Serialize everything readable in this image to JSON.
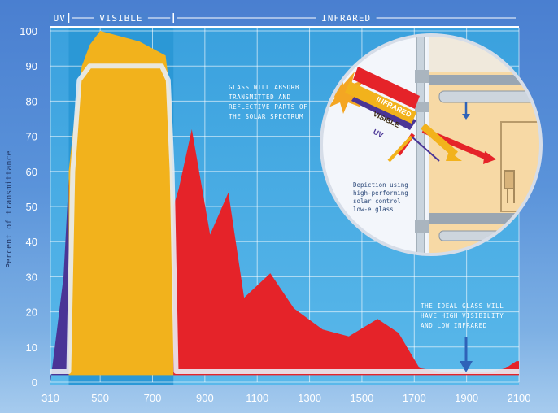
{
  "chart_data": {
    "type": "area",
    "xlabel": "",
    "ylabel": "Percent of transmittance",
    "xlim": [
      310,
      2100
    ],
    "ylim": [
      0,
      100
    ],
    "x_ticks": [
      310,
      500,
      700,
      900,
      1100,
      1300,
      1500,
      1700,
      1900,
      2100
    ],
    "y_ticks": [
      0,
      10,
      20,
      30,
      40,
      50,
      60,
      70,
      80,
      90,
      100
    ],
    "grid": true,
    "bands": [
      {
        "label": "UV",
        "from": 310,
        "to": 380
      },
      {
        "label": "VISIBLE",
        "from": 380,
        "to": 780
      },
      {
        "label": "INFRARED",
        "from": 780,
        "to": 2100
      }
    ],
    "series": [
      {
        "band": "UV",
        "color": "#4a3596",
        "x": [
          310,
          360,
          380,
          380,
          310
        ],
        "y": [
          0,
          30,
          58,
          2,
          2
        ]
      },
      {
        "band": "VISIBLE",
        "color": "#f2b21c",
        "x": [
          380,
          400,
          430,
          460,
          500,
          600,
          650,
          700,
          750,
          770,
          780,
          780,
          380
        ],
        "y": [
          60,
          74,
          90,
          96,
          100,
          98,
          97,
          95,
          93,
          80,
          50,
          2,
          2
        ]
      },
      {
        "band": "INFRARED",
        "color": "#e52329",
        "x": [
          780,
          800,
          850,
          920,
          990,
          1050,
          1150,
          1240,
          1350,
          1450,
          1560,
          1640,
          1720,
          1800,
          1900,
          2000,
          2050,
          2090,
          2100,
          2100,
          780
        ],
        "y": [
          50,
          55,
          72,
          42,
          54,
          24,
          31,
          21,
          15,
          13,
          18,
          14,
          4,
          3,
          3,
          3,
          4,
          6,
          6,
          2,
          2
        ]
      }
    ],
    "ideal_curve": {
      "color": "#e6eaf2",
      "x": [
        310,
        380,
        395,
        420,
        460,
        600,
        735,
        760,
        775,
        790,
        2100
      ],
      "y": [
        3,
        3,
        60,
        86,
        90,
        90,
        90,
        86,
        60,
        3,
        3
      ]
    },
    "annotations": [
      {
        "id": "absorb",
        "lines": [
          "GLASS WILL ABSORB",
          "TRANSMITTED AND",
          "REFLECTIVE PARTS OF",
          "THE SOLAR SPECTRUM"
        ]
      },
      {
        "id": "ideal",
        "lines": [
          "THE IDEAL GLASS WILL",
          "HAVE HIGH VISIBILITY",
          "AND LOW INFRARED"
        ]
      }
    ]
  },
  "inset": {
    "ray_labels": [
      "INFRARED",
      "VISIBLE",
      "UV"
    ],
    "caption": [
      "Depiction using",
      "high-performing",
      "solar control",
      "low-e glass"
    ]
  },
  "colors": {
    "uv": "#4a3596",
    "visible": "#f2b21c",
    "infrared": "#e52329",
    "plot_bg": "#3ca3de",
    "visible_band": "#2a9ad8",
    "grid": "#ffffff",
    "arrow": "#2f63b8"
  }
}
